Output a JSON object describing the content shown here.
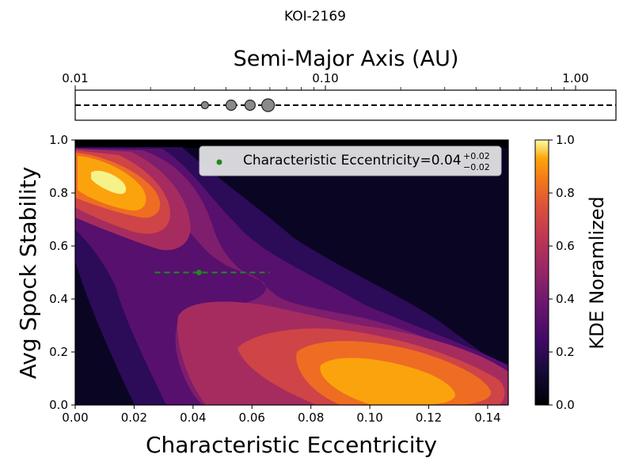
{
  "title": "KOI-2169",
  "top_axis": {
    "label": "Semi-Major Axis (AU)",
    "scale": "log",
    "xlim": [
      0.01,
      1.45
    ],
    "ticks": [
      {
        "value": 0.01,
        "label": "0.01"
      },
      {
        "value": 0.1,
        "label": "0.10"
      },
      {
        "value": 1.0,
        "label": "1.00"
      }
    ],
    "planets": [
      {
        "a": 0.033,
        "size": 1
      },
      {
        "a": 0.042,
        "size": 2
      },
      {
        "a": 0.05,
        "size": 2
      },
      {
        "a": 0.059,
        "size": 3
      }
    ]
  },
  "chart_data": {
    "type": "heatmap",
    "xlabel": "Characteristic Eccentricity",
    "ylabel": "Avg Spock Stability",
    "xlim": [
      0.0,
      0.147
    ],
    "ylim": [
      0.0,
      1.0
    ],
    "xticks": [
      "0.00",
      "0.02",
      "0.04",
      "0.06",
      "0.08",
      "0.10",
      "0.12",
      "0.14"
    ],
    "yticks": [
      "0.0",
      "0.2",
      "0.4",
      "0.6",
      "0.8",
      "1.0"
    ],
    "kde_peaks": [
      {
        "x": 0.012,
        "y": 0.84,
        "level": 1.0
      },
      {
        "x": 0.105,
        "y": 0.1,
        "level": 0.88
      }
    ],
    "point": {
      "x": 0.042,
      "y": 0.5,
      "xerr_low": 0.015,
      "xerr_high": 0.024,
      "color": "#1f8a1f"
    },
    "legend": {
      "text": "Characteristic Eccentricity=0.04",
      "sup": "+0.02",
      "sub": "−0.02",
      "placement": "upper-right"
    },
    "colorbar": {
      "label": "KDE Noramlized",
      "ticks": [
        "0.0",
        "0.2",
        "0.4",
        "0.6",
        "0.8",
        "1.0"
      ],
      "cmap": "inferno"
    }
  }
}
